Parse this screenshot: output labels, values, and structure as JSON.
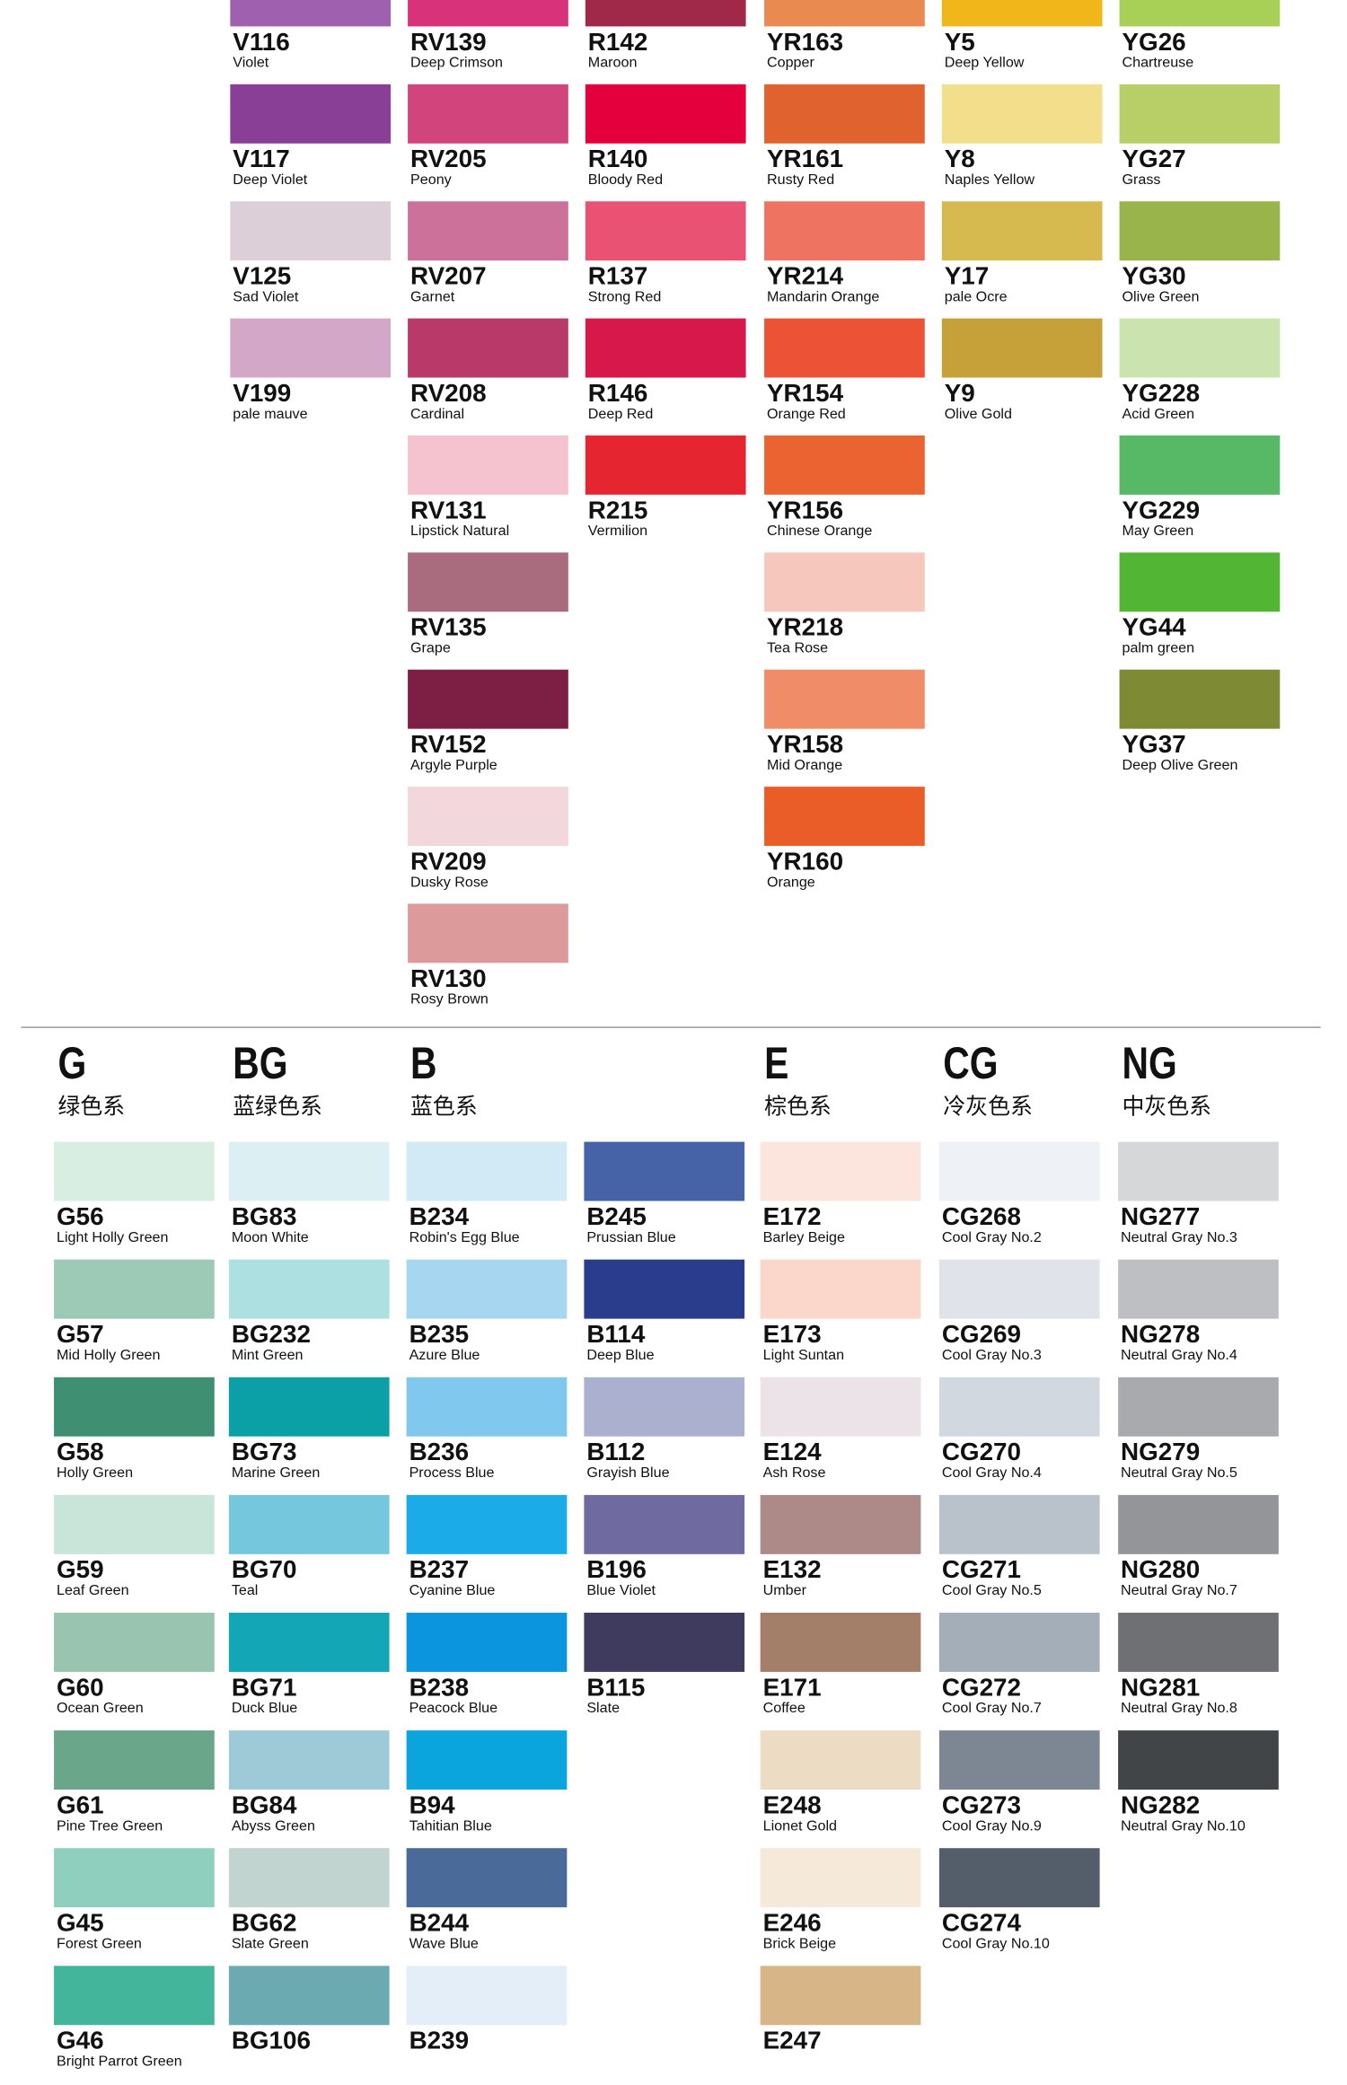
{
  "top_columns": [
    {
      "swatches": [
        {
          "code": "V116",
          "name": "Violet",
          "color": "#a060b0"
        },
        {
          "code": "V117",
          "name": "Deep Violet",
          "color": "#8a3f96"
        },
        {
          "code": "V125",
          "name": "Sad Violet",
          "color": "#dccfd8"
        },
        {
          "code": "V199",
          "name": "pale mauve",
          "color": "#d3a7c8"
        }
      ]
    },
    {
      "swatches": [
        {
          "code": "RV139",
          "name": "Deep Crimson",
          "color": "#d8327a"
        },
        {
          "code": "RV205",
          "name": "Peony",
          "color": "#d2447c"
        },
        {
          "code": "RV207",
          "name": "Garnet",
          "color": "#cc719a"
        },
        {
          "code": "RV208",
          "name": "Cardinal",
          "color": "#b93a68"
        },
        {
          "code": "RV131",
          "name": "Lipstick Natural",
          "color": "#f5c3d0"
        },
        {
          "code": "RV135",
          "name": "Grape",
          "color": "#a96b7e"
        },
        {
          "code": "RV152",
          "name": "Argyle Purple",
          "color": "#7d1f44"
        },
        {
          "code": "RV209",
          "name": "Dusky Rose",
          "color": "#f2d7dc"
        },
        {
          "code": "RV130",
          "name": "Rosy Brown",
          "color": "#dc9a9a"
        }
      ]
    },
    {
      "swatches": [
        {
          "code": "R142",
          "name": "Maroon",
          "color": "#a0294a"
        },
        {
          "code": "R140",
          "name": "Bloody Red",
          "color": "#e4003d"
        },
        {
          "code": "R137",
          "name": "Strong Red",
          "color": "#ea5274"
        },
        {
          "code": "R146",
          "name": "Deep Red",
          "color": "#d7184a"
        },
        {
          "code": "R215",
          "name": "Vermilion",
          "color": "#e52530"
        }
      ]
    },
    {
      "swatches": [
        {
          "code": "YR163",
          "name": "Copper",
          "color": "#e98a50"
        },
        {
          "code": "YR161",
          "name": "Rusty Red",
          "color": "#e0632f"
        },
        {
          "code": "YR214",
          "name": "Mandarin Orange",
          "color": "#ee7461"
        },
        {
          "code": "YR154",
          "name": "Orange Red",
          "color": "#ec5336"
        },
        {
          "code": "YR156",
          "name": "Chinese Orange",
          "color": "#ea6330"
        },
        {
          "code": "YR218",
          "name": "Tea Rose",
          "color": "#f6c8bd"
        },
        {
          "code": "YR158",
          "name": "Mid Orange",
          "color": "#f08c67"
        },
        {
          "code": "YR160",
          "name": "Orange",
          "color": "#ea5d29"
        }
      ]
    },
    {
      "swatches": [
        {
          "code": "Y5",
          "name": "Deep Yellow",
          "color": "#f1b619"
        },
        {
          "code": "Y8",
          "name": "Naples Yellow",
          "color": "#f3df8b"
        },
        {
          "code": "Y17",
          "name": "pale Ocre",
          "color": "#d7ba4f"
        },
        {
          "code": "Y9",
          "name": "Olive Gold",
          "color": "#c6a13a"
        }
      ]
    },
    {
      "swatches": [
        {
          "code": "YG26",
          "name": "Chartreuse",
          "color": "#a8d056"
        },
        {
          "code": "YG27",
          "name": "Grass",
          "color": "#b8cf68"
        },
        {
          "code": "YG30",
          "name": "Olive Green",
          "color": "#99b44a"
        },
        {
          "code": "YG228",
          "name": "Acid Green",
          "color": "#cbe3ae"
        },
        {
          "code": "YG229",
          "name": "May Green",
          "color": "#57b866"
        },
        {
          "code": "YG44",
          "name": "palm green",
          "color": "#52b634"
        },
        {
          "code": "YG37",
          "name": "Deep Olive Green",
          "color": "#7f8a34"
        }
      ]
    }
  ],
  "bottom": {
    "groups": [
      {
        "letter": "G",
        "label": "绿色系"
      },
      {
        "letter": "BG",
        "label": "蓝绿色系"
      },
      {
        "letter": "B",
        "label": "蓝色系"
      },
      {
        "letter": "E",
        "label": "棕色系"
      },
      {
        "letter": "CG",
        "label": "冷灰色系"
      },
      {
        "letter": "NG",
        "label": "中灰色系"
      }
    ],
    "columns": [
      {
        "swatches": [
          {
            "code": "G56",
            "name": "Light Holly Green",
            "color": "#d8eee2"
          },
          {
            "code": "G57",
            "name": "Mid Holly Green",
            "color": "#9ccab6"
          },
          {
            "code": "G58",
            "name": "Holly Green",
            "color": "#3f8f73"
          },
          {
            "code": "G59",
            "name": "Leaf Green",
            "color": "#c9e4d8"
          },
          {
            "code": "G60",
            "name": "Ocean Green",
            "color": "#99c5b0"
          },
          {
            "code": "G61",
            "name": "Pine Tree Green",
            "color": "#6aa78a"
          },
          {
            "code": "G45",
            "name": "Forest Green",
            "color": "#8fcfbe"
          },
          {
            "code": "G46",
            "name": "Bright Parrot Green",
            "color": "#43b59b"
          }
        ]
      },
      {
        "swatches": [
          {
            "code": "BG83",
            "name": "Moon White",
            "color": "#dcf0f3"
          },
          {
            "code": "BG232",
            "name": "Mint Green",
            "color": "#ade0e0"
          },
          {
            "code": "BG73",
            "name": "Marine Green",
            "color": "#0aa0a5"
          },
          {
            "code": "BG70",
            "name": "Teal",
            "color": "#74c7dc"
          },
          {
            "code": "BG71",
            "name": "Duck Blue",
            "color": "#12a6b6"
          },
          {
            "code": "BG84",
            "name": "Abyss Green",
            "color": "#9dcad6"
          },
          {
            "code": "BG62",
            "name": "Slate Green",
            "color": "#c1d4cf"
          },
          {
            "code": "BG106",
            "color": "#6aaab0"
          }
        ]
      },
      {
        "swatches": [
          {
            "code": "B234",
            "name": "Robin's Egg Blue",
            "color": "#d2eaf5"
          },
          {
            "code": "B235",
            "name": "Azure Blue",
            "color": "#a7d7f0"
          },
          {
            "code": "B236",
            "name": "Process Blue",
            "color": "#80c8ee"
          },
          {
            "code": "B237",
            "name": "Cyanine Blue",
            "color": "#1aabe8"
          },
          {
            "code": "B238",
            "name": "Peacock Blue",
            "color": "#0a95de"
          },
          {
            "code": "B94",
            "name": "Tahitian Blue",
            "color": "#0aa5dc"
          },
          {
            "code": "B244",
            "name": "Wave Blue",
            "color": "#4a6a9a"
          },
          {
            "code": "B239",
            "color": "#e3eef8"
          }
        ]
      },
      {
        "swatches": [
          {
            "code": "B245",
            "name": "Prussian Blue",
            "color": "#4763a8"
          },
          {
            "code": "B114",
            "name": "Deep Blue",
            "color": "#2a3d8c"
          },
          {
            "code": "B112",
            "name": "Grayish Blue",
            "color": "#acb0cf"
          },
          {
            "code": "B196",
            "name": "Blue Violet",
            "color": "#6f6ba0"
          },
          {
            "code": "B115",
            "name": "Slate",
            "color": "#3e3b5e"
          }
        ]
      },
      {
        "swatches": [
          {
            "code": "E172",
            "name": "Barley Beige",
            "color": "#fce5dc"
          },
          {
            "code": "E173",
            "name": "Light Suntan",
            "color": "#fbd6ca"
          },
          {
            "code": "E124",
            "name": "Ash Rose",
            "color": "#ebe3e8"
          },
          {
            "code": "E132",
            "name": "Umber",
            "color": "#ad8987"
          },
          {
            "code": "E171",
            "name": "Coffee",
            "color": "#a37f6a"
          },
          {
            "code": "E248",
            "name": "Lionet Gold",
            "color": "#ecdcc3"
          },
          {
            "code": "E246",
            "name": "Brick Beige",
            "color": "#f5ead9"
          },
          {
            "code": "E247",
            "color": "#d8b587"
          }
        ]
      },
      {
        "swatches": [
          {
            "code": "CG268",
            "name": "Cool Gray No.2",
            "color": "#eef1f5"
          },
          {
            "code": "CG269",
            "name": "Cool Gray No.3",
            "color": "#e0e4ea"
          },
          {
            "code": "CG270",
            "name": "Cool Gray No.4",
            "color": "#d2d8df"
          },
          {
            "code": "CG271",
            "name": "Cool Gray No.5",
            "color": "#b9c1ca"
          },
          {
            "code": "CG272",
            "name": "Cool Gray No.7",
            "color": "#a4aeb8"
          },
          {
            "code": "CG273",
            "name": "Cool Gray No.9",
            "color": "#7d8793"
          },
          {
            "code": "CG274",
            "name": "Cool Gray No.10",
            "color": "#535e6a"
          }
        ]
      },
      {
        "swatches": [
          {
            "code": "NG277",
            "name": "Neutral Gray No.3",
            "color": "#d6d7d9"
          },
          {
            "code": "NG278",
            "name": "Neutral Gray No.4",
            "color": "#bdbfc3"
          },
          {
            "code": "NG279",
            "name": "Neutral Gray No.5",
            "color": "#a8aaad"
          },
          {
            "code": "NG280",
            "name": "Neutral Gray No.7",
            "color": "#939598"
          },
          {
            "code": "NG281",
            "name": "Neutral Gray No.8",
            "color": "#6e7073"
          },
          {
            "code": "NG282",
            "name": "Neutral Gray No.10",
            "color": "#424548"
          }
        ]
      }
    ]
  }
}
